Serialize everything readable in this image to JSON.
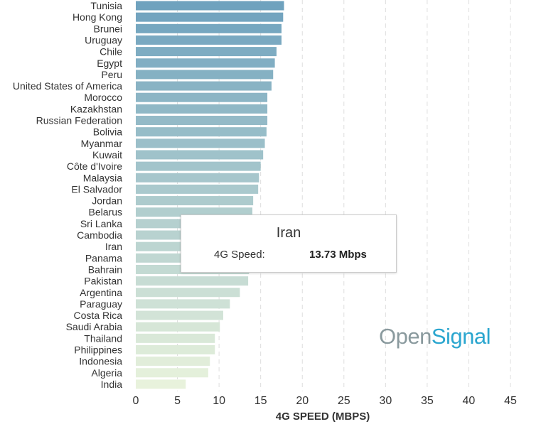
{
  "chart_data": {
    "type": "bar",
    "orientation": "horizontal",
    "xlabel": "4G SPEED (MBPS)",
    "xlim": [
      0,
      45
    ],
    "xticks": [
      0,
      5,
      10,
      15,
      20,
      25,
      30,
      35,
      40,
      45
    ],
    "grid": "vertical dashed",
    "categories": [
      "Tunisia",
      "Hong Kong",
      "Brunei",
      "Uruguay",
      "Chile",
      "Egypt",
      "Peru",
      "United States of America",
      "Morocco",
      "Kazakhstan",
      "Russian Federation",
      "Bolivia",
      "Myanmar",
      "Kuwait",
      "Côte d'Ivoire",
      "Malaysia",
      "El Salvador",
      "Jordan",
      "Belarus",
      "Sri Lanka",
      "Cambodia",
      "Iran",
      "Panama",
      "Bahrain",
      "Pakistan",
      "Argentina",
      "Paraguay",
      "Costa Rica",
      "Saudi Arabia",
      "Thailand",
      "Philippines",
      "Indonesia",
      "Algeria",
      "India"
    ],
    "values": [
      17.8,
      17.7,
      17.5,
      17.5,
      16.9,
      16.7,
      16.5,
      16.3,
      15.8,
      15.8,
      15.8,
      15.7,
      15.5,
      15.3,
      15.0,
      14.8,
      14.7,
      14.1,
      14.0,
      13.9,
      13.8,
      13.73,
      13.7,
      13.6,
      13.5,
      12.5,
      11.3,
      10.5,
      10.1,
      9.5,
      9.5,
      8.9,
      8.7,
      6.0
    ],
    "color_top": "#6fa2be",
    "color_bottom": "#e8f2dc"
  },
  "tooltip": {
    "title": "Iran",
    "label": "4G Speed:",
    "value": "13.73 Mbps"
  },
  "logo": {
    "part1": "Open",
    "part2": "Signal"
  }
}
